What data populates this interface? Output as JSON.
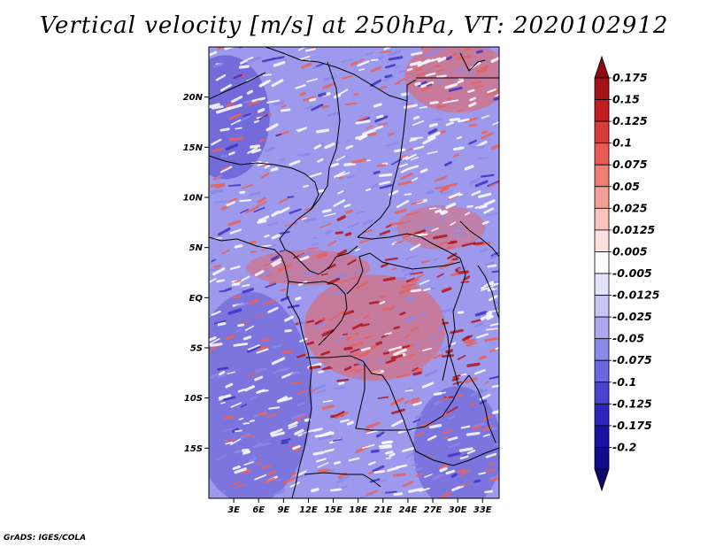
{
  "title": "Vertical velocity [m/s] at 250hPa, VT: 2020102912",
  "credit": "GrADS: IGES/COLA",
  "map": {
    "lon_ticks": [
      "3E",
      "6E",
      "9E",
      "12E",
      "15E",
      "18E",
      "21E",
      "24E",
      "27E",
      "30E",
      "33E"
    ],
    "lat_ticks": [
      "20N",
      "15N",
      "10N",
      "5N",
      "EQ",
      "5S",
      "10S",
      "15S"
    ],
    "lon_tick_values": [
      3,
      6,
      9,
      12,
      15,
      18,
      21,
      24,
      27,
      30,
      33
    ],
    "lat_tick_values": [
      20,
      15,
      10,
      5,
      0,
      -5,
      -10,
      -15
    ],
    "lon_range": [
      0,
      35
    ],
    "lat_range": [
      -20,
      25
    ]
  },
  "colorbar": {
    "labels": [
      "0.175",
      "0.15",
      "0.125",
      "0.1",
      "0.075",
      "0.05",
      "0.025",
      "0.0125",
      "0.005",
      "-0.005",
      "-0.0125",
      "-0.025",
      "-0.05",
      "-0.075",
      "-0.1",
      "-0.125",
      "-0.175",
      "-0.2"
    ],
    "colors": [
      "#a31318",
      "#c41e24",
      "#d93b3b",
      "#e85b55",
      "#ef7d74",
      "#f4a098",
      "#f8c3bd",
      "#fbe0dd",
      "#ffffff",
      "#e5e3fb",
      "#c9c6f6",
      "#aca8f0",
      "#8c88e9",
      "#6c66e0",
      "#4a44d2",
      "#2e27bf",
      "#1a12a5",
      "#120b8c"
    ],
    "top_arrow_color": "#8b0d10",
    "bottom_arrow_color": "#0d0670"
  },
  "colors": {
    "ascent_core": "#b0161d",
    "ascent": "#e8625c",
    "neutral": "#ffffff",
    "subsidence": "#8c88e9",
    "subsidence_core": "#3d33c4",
    "borders": "#000000"
  }
}
